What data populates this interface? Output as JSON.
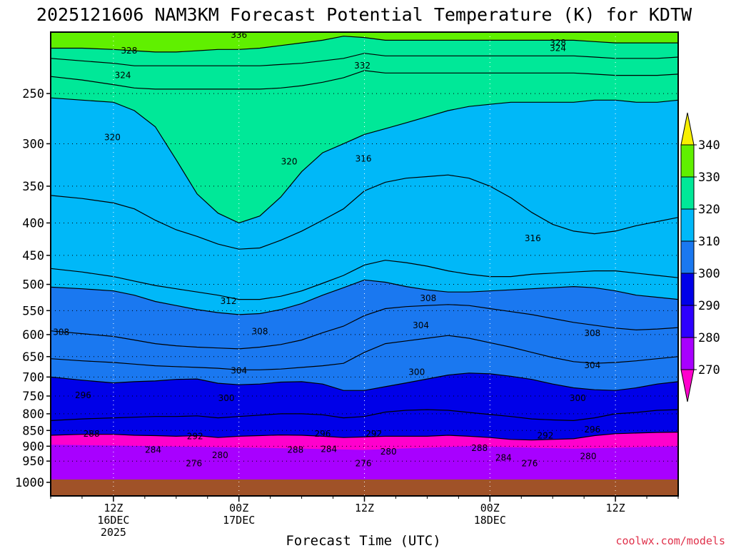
{
  "chart_data": {
    "type": "heatmap",
    "title": "2025121606 NAM3KM Forecast Potential Temperature (K) for KDTW",
    "xlabel": "Forecast Time (UTC)",
    "ylabel": "",
    "credit": "coolwx.com/models",
    "units": "K",
    "y_axis": {
      "scale": "log-pressure",
      "range": [
        1000,
        200
      ],
      "ticks": [
        250,
        300,
        350,
        400,
        450,
        500,
        550,
        600,
        650,
        700,
        750,
        800,
        850,
        900,
        950,
        1000
      ],
      "grid": true
    },
    "x_axis": {
      "range_hours": [
        0,
        60
      ],
      "grid": true,
      "ticks": [
        {
          "hour": 6,
          "lines": [
            "12Z",
            "16DEC",
            "2025"
          ]
        },
        {
          "hour": 18,
          "lines": [
            "00Z",
            "17DEC"
          ]
        },
        {
          "hour": 30,
          "lines": [
            "12Z"
          ]
        },
        {
          "hour": 42,
          "lines": [
            "00Z",
            "18DEC"
          ]
        },
        {
          "hour": 54,
          "lines": [
            "12Z"
          ]
        }
      ]
    },
    "colorbar": {
      "levels": [
        270,
        280,
        290,
        300,
        310,
        320,
        330,
        340
      ],
      "labels": [
        "340",
        "330",
        "320",
        "310",
        "300",
        "290",
        "280",
        "270"
      ],
      "colors": [
        "#ff00cc",
        "#a800ff",
        "#2d00ff",
        "#0000e8",
        "#1a78f0",
        "#00b8f8",
        "#00e898",
        "#60f000",
        "#f8f000"
      ]
    },
    "isotherm_interval": 4,
    "surface_fill": "#a05228",
    "series": [
      {
        "x": [
          0,
          3,
          6,
          8,
          10,
          12,
          14,
          16,
          18,
          20,
          22,
          24,
          26,
          28,
          30,
          32,
          34,
          36,
          38,
          40,
          42,
          44,
          46,
          48,
          50,
          52,
          54,
          56,
          58,
          60
        ],
        "p": [
          865,
          862,
          862,
          865,
          866,
          868,
          866,
          872,
          868,
          866,
          864,
          865,
          868,
          872,
          870,
          868,
          868,
          868,
          865,
          868,
          872,
          878,
          880,
          878,
          876,
          866,
          860,
          858,
          856,
          855
        ],
        "theta": 290
      },
      {
        "x": [
          0,
          3,
          6,
          8,
          10,
          12,
          14,
          16,
          18,
          20,
          22,
          24,
          26,
          28,
          30,
          32,
          34,
          36,
          38,
          40,
          42,
          44,
          46,
          48,
          50,
          52,
          54,
          56,
          58,
          60
        ],
        "p": [
          820,
          815,
          812,
          810,
          808,
          808,
          806,
          812,
          808,
          804,
          800,
          800,
          803,
          812,
          808,
          795,
          790,
          788,
          790,
          796,
          802,
          808,
          815,
          818,
          820,
          812,
          800,
          796,
          790,
          788
        ],
        "theta": 296
      },
      {
        "x": [
          0,
          3,
          6,
          8,
          10,
          12,
          14,
          16,
          18,
          20,
          22,
          24,
          26,
          28,
          30,
          32,
          34,
          36,
          38,
          40,
          42,
          44,
          46,
          48,
          50,
          52,
          54,
          56,
          58,
          60
        ],
        "p": [
          700,
          708,
          715,
          712,
          710,
          706,
          705,
          716,
          720,
          718,
          713,
          712,
          718,
          735,
          735,
          725,
          715,
          705,
          695,
          690,
          692,
          698,
          706,
          718,
          728,
          733,
          735,
          728,
          718,
          712
        ],
        "theta": 300
      },
      {
        "x": [
          0,
          3,
          6,
          8,
          10,
          12,
          14,
          16,
          18,
          20,
          22,
          24,
          26,
          28,
          30,
          32,
          34,
          36,
          38,
          40,
          42,
          44,
          46,
          48,
          50,
          52,
          54,
          56,
          58,
          60
        ],
        "p": [
          655,
          660,
          664,
          668,
          672,
          674,
          676,
          678,
          682,
          682,
          680,
          676,
          672,
          666,
          640,
          620,
          614,
          608,
          602,
          608,
          618,
          628,
          640,
          652,
          662,
          666,
          664,
          660,
          655,
          650
        ],
        "theta": 304
      },
      {
        "x": [
          0,
          3,
          6,
          8,
          10,
          12,
          14,
          16,
          18,
          20,
          22,
          24,
          26,
          28,
          30,
          32,
          34,
          36,
          38,
          40,
          42,
          44,
          46,
          48,
          50,
          52,
          54,
          56,
          58,
          60
        ],
        "p": [
          592,
          598,
          604,
          612,
          620,
          625,
          628,
          630,
          632,
          628,
          622,
          612,
          596,
          582,
          560,
          546,
          542,
          540,
          538,
          540,
          546,
          552,
          558,
          566,
          574,
          580,
          586,
          590,
          588,
          585
        ],
        "theta": 308
      },
      {
        "x": [
          0,
          3,
          6,
          8,
          10,
          12,
          14,
          16,
          18,
          20,
          22,
          24,
          26,
          28,
          30,
          32,
          34,
          36,
          38,
          40,
          42,
          44,
          46,
          48,
          50,
          52,
          54,
          56,
          58,
          60
        ],
        "p": [
          505,
          508,
          512,
          520,
          532,
          540,
          548,
          554,
          558,
          556,
          548,
          536,
          520,
          506,
          492,
          496,
          504,
          510,
          514,
          514,
          512,
          510,
          508,
          506,
          504,
          506,
          512,
          520,
          524,
          528
        ],
        "theta": 310
      },
      {
        "x": [
          0,
          3,
          6,
          8,
          10,
          12,
          14,
          16,
          18,
          20,
          22,
          24,
          26,
          28,
          30,
          32,
          34,
          36,
          38,
          40,
          42,
          44,
          46,
          48,
          50,
          52,
          54,
          56,
          58,
          60
        ],
        "p": [
          472,
          478,
          486,
          494,
          502,
          508,
          514,
          520,
          528,
          528,
          522,
          512,
          498,
          484,
          466,
          458,
          462,
          468,
          476,
          482,
          486,
          486,
          482,
          480,
          478,
          476,
          476,
          480,
          484,
          488
        ],
        "theta": 312
      },
      {
        "x": [
          0,
          3,
          6,
          8,
          10,
          12,
          14,
          16,
          18,
          20,
          22,
          24,
          26,
          28,
          30,
          32,
          34,
          36,
          38,
          40,
          42,
          44,
          46,
          48,
          50,
          52,
          54,
          56,
          58,
          60
        ],
        "p": [
          362,
          366,
          372,
          380,
          396,
          410,
          420,
          432,
          440,
          438,
          426,
          412,
          396,
          380,
          356,
          345,
          340,
          338,
          336,
          340,
          350,
          365,
          385,
          402,
          412,
          416,
          412,
          404,
          398,
          392
        ],
        "theta": 316
      },
      {
        "x": [
          0,
          3,
          6,
          8,
          10,
          12,
          14,
          16,
          18,
          20,
          22,
          24,
          26,
          28,
          30,
          32,
          34,
          36,
          38,
          40,
          42,
          44,
          46,
          48,
          50,
          52,
          54,
          56,
          58,
          60
        ],
        "p": [
          254,
          256,
          258,
          266,
          282,
          318,
          360,
          386,
          400,
          390,
          364,
          332,
          310,
          300,
          290,
          284,
          278,
          272,
          266,
          262,
          260,
          258,
          258,
          258,
          258,
          256,
          256,
          258,
          258,
          256
        ],
        "theta": 320
      },
      {
        "x": [
          0,
          3,
          6,
          8,
          10,
          12,
          14,
          16,
          18,
          20,
          22,
          24,
          26,
          28,
          30,
          32,
          34,
          36,
          38,
          40,
          42,
          44,
          46,
          48,
          50,
          52,
          54,
          56,
          58,
          60
        ],
        "p": [
          235,
          238,
          242,
          245,
          246,
          246,
          246,
          246,
          246,
          246,
          245,
          243,
          240,
          236,
          230,
          232,
          232,
          232,
          232,
          232,
          232,
          232,
          232,
          232,
          232,
          233,
          234,
          234,
          234,
          233
        ],
        "theta": 324
      },
      {
        "x": [
          0,
          3,
          6,
          8,
          10,
          12,
          14,
          16,
          18,
          20,
          22,
          24,
          26,
          28,
          30,
          32,
          34,
          36,
          38,
          40,
          42,
          44,
          46,
          48,
          50,
          52,
          54,
          56,
          58,
          60
        ],
        "p": [
          220,
          222,
          224,
          226,
          226,
          226,
          226,
          226,
          226,
          226,
          225,
          224,
          222,
          220,
          216,
          218,
          218,
          218,
          218,
          218,
          218,
          218,
          218,
          218,
          218,
          219,
          220,
          220,
          220,
          219
        ],
        "theta": 328
      },
      {
        "x": [
          0,
          3,
          6,
          8,
          10,
          12,
          14,
          16,
          18,
          20,
          22,
          24,
          26,
          28,
          30,
          32,
          34,
          36,
          38,
          40,
          42,
          44,
          46,
          48,
          50,
          52,
          54,
          56,
          58,
          60
        ],
        "p": [
          212,
          212,
          213,
          214,
          215,
          215,
          214,
          213,
          213,
          212,
          210,
          208,
          206,
          203,
          204,
          206,
          206,
          206,
          206,
          206,
          206,
          206,
          206,
          206,
          206,
          207,
          208,
          208,
          208,
          208
        ],
        "theta": 332
      }
    ],
    "contour_labels": [
      {
        "text": "336",
        "x": 18.0,
        "p": 202
      },
      {
        "text": "328",
        "x": 7.5,
        "p": 214
      },
      {
        "text": "328",
        "x": 48.5,
        "p": 208
      },
      {
        "text": "324",
        "x": 48.5,
        "p": 212
      },
      {
        "text": "332",
        "x": 29.8,
        "p": 226
      },
      {
        "text": "324",
        "x": 6.9,
        "p": 234
      },
      {
        "text": "320",
        "x": 5.9,
        "p": 293
      },
      {
        "text": "320",
        "x": 22.8,
        "p": 320
      },
      {
        "text": "316",
        "x": 29.9,
        "p": 317
      },
      {
        "text": "316",
        "x": 46.1,
        "p": 423
      },
      {
        "text": "312",
        "x": 17.0,
        "p": 531
      },
      {
        "text": "308",
        "x": 36.1,
        "p": 526
      },
      {
        "text": "304",
        "x": 35.4,
        "p": 580
      },
      {
        "text": "308",
        "x": 1.0,
        "p": 595
      },
      {
        "text": "308",
        "x": 20.0,
        "p": 593
      },
      {
        "text": "308",
        "x": 51.8,
        "p": 597
      },
      {
        "text": "304",
        "x": 18.0,
        "p": 684
      },
      {
        "text": "304",
        "x": 51.8,
        "p": 671
      },
      {
        "text": "300",
        "x": 35.0,
        "p": 688
      },
      {
        "text": "296",
        "x": 3.1,
        "p": 748
      },
      {
        "text": "300",
        "x": 16.8,
        "p": 756
      },
      {
        "text": "300",
        "x": 50.4,
        "p": 756
      },
      {
        "text": "296",
        "x": 51.8,
        "p": 847
      },
      {
        "text": "288",
        "x": 3.9,
        "p": 860
      },
      {
        "text": "292",
        "x": 13.8,
        "p": 868
      },
      {
        "text": "296",
        "x": 26.0,
        "p": 860
      },
      {
        "text": "292",
        "x": 30.9,
        "p": 860
      },
      {
        "text": "292",
        "x": 47.3,
        "p": 866
      },
      {
        "text": "284",
        "x": 9.8,
        "p": 912
      },
      {
        "text": "288",
        "x": 23.4,
        "p": 912
      },
      {
        "text": "284",
        "x": 26.6,
        "p": 910
      },
      {
        "text": "280",
        "x": 16.2,
        "p": 930
      },
      {
        "text": "280",
        "x": 32.3,
        "p": 918
      },
      {
        "text": "288",
        "x": 41.0,
        "p": 906
      },
      {
        "text": "284",
        "x": 43.3,
        "p": 938
      },
      {
        "text": "280",
        "x": 51.4,
        "p": 934
      },
      {
        "text": "276",
        "x": 13.7,
        "p": 958
      },
      {
        "text": "276",
        "x": 29.9,
        "p": 958
      },
      {
        "text": "276",
        "x": 45.8,
        "p": 958
      }
    ]
  }
}
